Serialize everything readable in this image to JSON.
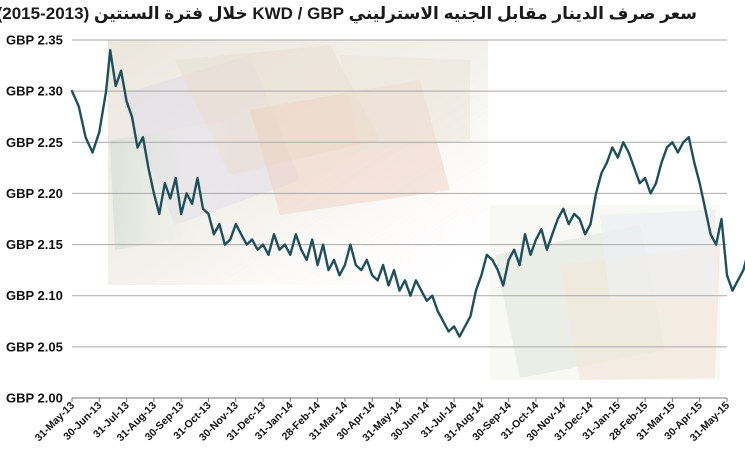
{
  "chart_data": {
    "type": "line",
    "title": "سعر صرف الدينار مقابل الجنيه الاسترليني KWD / GBP خلال فترة السنتين (2013-2015)",
    "xlabel": "",
    "ylabel": "",
    "ylim": [
      2.0,
      2.35
    ],
    "y_ticks": [
      "GBP 2.35",
      "GBP 2.30",
      "GBP 2.25",
      "GBP 2.20",
      "GBP 2.15",
      "GBP 2.10",
      "GBP 2.05",
      "GBP 2.00"
    ],
    "x_ticks": [
      "31-May-13",
      "30-Jun-13",
      "31-Jul-13",
      "31-Aug-13",
      "30-Sep-13",
      "31-Oct-13",
      "30-Nov-13",
      "31-Dec-13",
      "31-Jan-14",
      "28-Feb-14",
      "31-Mar-14",
      "30-Apr-14",
      "31-May-14",
      "30-Jun-14",
      "31-Jul-14",
      "31-Aug-14",
      "30-Sep-14",
      "31-Oct-14",
      "30-Nov-14",
      "31-Dec-14",
      "31-Jan-15",
      "28-Feb-15",
      "31-Mar-15",
      "30-Apr-15",
      "31-May-15"
    ],
    "grid": true,
    "line_color": "#1f4f5c",
    "series": [
      {
        "values": [
          [
            0,
            2.3
          ],
          [
            0.25,
            2.285
          ],
          [
            0.5,
            2.255
          ],
          [
            0.75,
            2.24
          ],
          [
            1.0,
            2.26
          ],
          [
            1.25,
            2.3
          ],
          [
            1.4,
            2.34
          ],
          [
            1.6,
            2.305
          ],
          [
            1.8,
            2.32
          ],
          [
            2.0,
            2.29
          ],
          [
            2.2,
            2.275
          ],
          [
            2.4,
            2.245
          ],
          [
            2.6,
            2.255
          ],
          [
            2.8,
            2.225
          ],
          [
            3.0,
            2.2
          ],
          [
            3.2,
            2.18
          ],
          [
            3.4,
            2.21
          ],
          [
            3.6,
            2.195
          ],
          [
            3.8,
            2.215
          ],
          [
            4.0,
            2.18
          ],
          [
            4.2,
            2.2
          ],
          [
            4.4,
            2.19
          ],
          [
            4.6,
            2.215
          ],
          [
            4.8,
            2.185
          ],
          [
            5.0,
            2.18
          ],
          [
            5.2,
            2.16
          ],
          [
            5.4,
            2.17
          ],
          [
            5.6,
            2.15
          ],
          [
            5.8,
            2.155
          ],
          [
            6.0,
            2.17
          ],
          [
            6.2,
            2.16
          ],
          [
            6.4,
            2.15
          ],
          [
            6.6,
            2.155
          ],
          [
            6.8,
            2.145
          ],
          [
            7.0,
            2.15
          ],
          [
            7.2,
            2.14
          ],
          [
            7.4,
            2.16
          ],
          [
            7.6,
            2.145
          ],
          [
            7.8,
            2.15
          ],
          [
            8.0,
            2.14
          ],
          [
            8.2,
            2.16
          ],
          [
            8.4,
            2.145
          ],
          [
            8.6,
            2.135
          ],
          [
            8.8,
            2.155
          ],
          [
            9.0,
            2.13
          ],
          [
            9.2,
            2.15
          ],
          [
            9.4,
            2.125
          ],
          [
            9.6,
            2.135
          ],
          [
            9.8,
            2.12
          ],
          [
            10.0,
            2.13
          ],
          [
            10.2,
            2.15
          ],
          [
            10.4,
            2.13
          ],
          [
            10.6,
            2.125
          ],
          [
            10.8,
            2.135
          ],
          [
            11.0,
            2.12
          ],
          [
            11.2,
            2.115
          ],
          [
            11.4,
            2.13
          ],
          [
            11.6,
            2.11
          ],
          [
            11.8,
            2.125
          ],
          [
            12.0,
            2.105
          ],
          [
            12.2,
            2.115
          ],
          [
            12.4,
            2.1
          ],
          [
            12.6,
            2.115
          ],
          [
            12.8,
            2.105
          ],
          [
            13.0,
            2.095
          ],
          [
            13.2,
            2.1
          ],
          [
            13.4,
            2.085
          ],
          [
            13.6,
            2.075
          ],
          [
            13.8,
            2.065
          ],
          [
            14.0,
            2.07
          ],
          [
            14.2,
            2.06
          ],
          [
            14.4,
            2.07
          ],
          [
            14.6,
            2.08
          ],
          [
            14.8,
            2.105
          ],
          [
            15.0,
            2.12
          ],
          [
            15.2,
            2.14
          ],
          [
            15.4,
            2.135
          ],
          [
            15.6,
            2.125
          ],
          [
            15.8,
            2.11
          ],
          [
            16.0,
            2.135
          ],
          [
            16.2,
            2.145
          ],
          [
            16.4,
            2.13
          ],
          [
            16.6,
            2.16
          ],
          [
            16.8,
            2.14
          ],
          [
            17.0,
            2.155
          ],
          [
            17.2,
            2.165
          ],
          [
            17.4,
            2.145
          ],
          [
            17.6,
            2.16
          ],
          [
            17.8,
            2.175
          ],
          [
            18.0,
            2.185
          ],
          [
            18.2,
            2.17
          ],
          [
            18.4,
            2.18
          ],
          [
            18.6,
            2.175
          ],
          [
            18.8,
            2.16
          ],
          [
            19.0,
            2.17
          ],
          [
            19.2,
            2.2
          ],
          [
            19.4,
            2.22
          ],
          [
            19.6,
            2.23
          ],
          [
            19.8,
            2.245
          ],
          [
            20.0,
            2.235
          ],
          [
            20.2,
            2.25
          ],
          [
            20.4,
            2.24
          ],
          [
            20.6,
            2.225
          ],
          [
            20.8,
            2.21
          ],
          [
            21.0,
            2.215
          ],
          [
            21.2,
            2.2
          ],
          [
            21.4,
            2.21
          ],
          [
            21.6,
            2.23
          ],
          [
            21.8,
            2.245
          ],
          [
            22.0,
            2.25
          ],
          [
            22.2,
            2.24
          ],
          [
            22.4,
            2.25
          ],
          [
            22.6,
            2.255
          ],
          [
            22.8,
            2.23
          ],
          [
            23.0,
            2.21
          ],
          [
            23.2,
            2.185
          ],
          [
            23.4,
            2.16
          ],
          [
            23.6,
            2.15
          ],
          [
            23.8,
            2.175
          ],
          [
            24.0,
            2.12
          ],
          [
            24.2,
            2.105
          ],
          [
            24.4,
            2.115
          ],
          [
            24.6,
            2.125
          ],
          [
            24.8,
            2.145
          ],
          [
            25.0,
            2.155
          ]
        ]
      }
    ]
  }
}
